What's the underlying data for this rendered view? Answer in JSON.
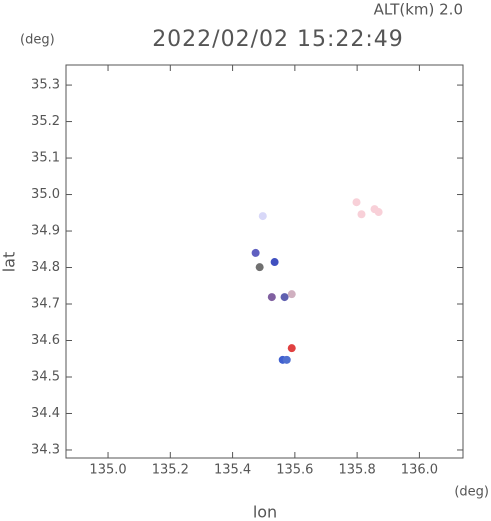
{
  "chart_data": {
    "type": "scatter",
    "title": "2022/02/02 15:22:49",
    "subtitle": "ALT(km) 2.0",
    "y_unit": "(deg)",
    "x_unit": "(deg)",
    "x_label": "lon",
    "y_label": "lat",
    "x": [
      135.497,
      135.798,
      135.814,
      135.856,
      135.869,
      135.474,
      135.487,
      135.535,
      135.526,
      135.567,
      135.59,
      135.59,
      135.561,
      135.574
    ],
    "y": [
      34.941,
      34.979,
      34.946,
      34.96,
      34.952,
      34.84,
      34.801,
      34.815,
      34.719,
      34.719,
      34.727,
      34.579,
      34.547,
      34.547
    ],
    "colors": [
      "#d8d8f8",
      "#f8d0d8",
      "#f8d0d8",
      "#f8d0d8",
      "#f8d0d8",
      "#6060c0",
      "#707070",
      "#4050c0",
      "#8060a0",
      "#6060b0",
      "#d0b0c0",
      "#e04040",
      "#4060d0",
      "#5070d0"
    ],
    "xlim": [
      134.865,
      136.14
    ],
    "ylim": [
      34.278,
      35.355
    ],
    "xticks": [
      {
        "value": 135,
        "label": "135.0"
      },
      135.2,
      135.4,
      135.6,
      135.8,
      {
        "value": 136,
        "label": "136.0"
      }
    ],
    "yticks": [
      34.3,
      34.4,
      34.5,
      34.6,
      34.7,
      34.8,
      34.9,
      {
        "value": 35,
        "label": "35.0"
      },
      35.1,
      35.2,
      35.3
    ],
    "grid": false
  }
}
